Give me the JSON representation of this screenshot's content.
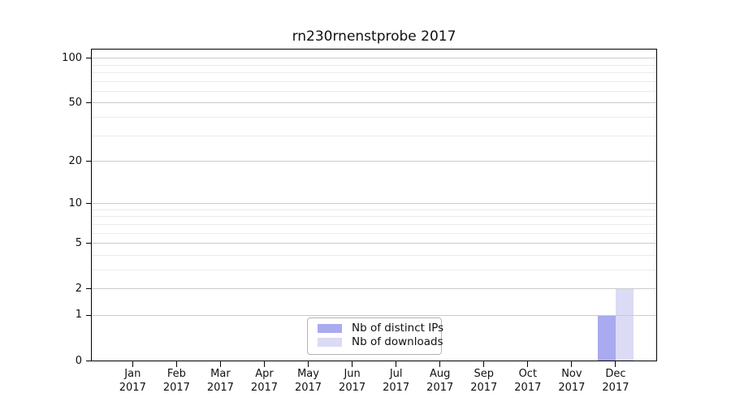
{
  "title": "rn230rnenstprobe 2017",
  "legend": {
    "items": [
      {
        "label": "Nb of distinct IPs",
        "color": "#aaaaf0"
      },
      {
        "label": "Nb of downloads",
        "color": "#dbdbf6"
      }
    ]
  },
  "chart_data": {
    "type": "bar",
    "title": "rn230rnenstprobe 2017",
    "categories": [
      "Jan 2017",
      "Feb 2017",
      "Mar 2017",
      "Apr 2017",
      "May 2017",
      "Jun 2017",
      "Jul 2017",
      "Aug 2017",
      "Sep 2017",
      "Oct 2017",
      "Nov 2017",
      "Dec 2017"
    ],
    "series": [
      {
        "name": "Nb of distinct IPs",
        "color": "#aaaaf0",
        "values": [
          0,
          0,
          0,
          0,
          0,
          0,
          0,
          0,
          0,
          0,
          0,
          1
        ]
      },
      {
        "name": "Nb of downloads",
        "color": "#dbdbf6",
        "values": [
          0,
          0,
          0,
          0,
          0,
          0,
          0,
          0,
          0,
          0,
          0,
          2
        ]
      }
    ],
    "xlabel": "",
    "ylabel": "",
    "y_axis": {
      "scale": "log1p",
      "ticks": [
        0,
        1,
        2,
        5,
        10,
        20,
        50,
        100
      ],
      "minor_gridlines": [
        3,
        4,
        6,
        7,
        8,
        9,
        30,
        40,
        60,
        70,
        80,
        90
      ],
      "ylim": [
        0,
        113
      ]
    },
    "grid": "on",
    "grid_colors": {
      "major": "#cbcbcb",
      "minor": "#ebebeb"
    },
    "legend_position": "lower center"
  }
}
